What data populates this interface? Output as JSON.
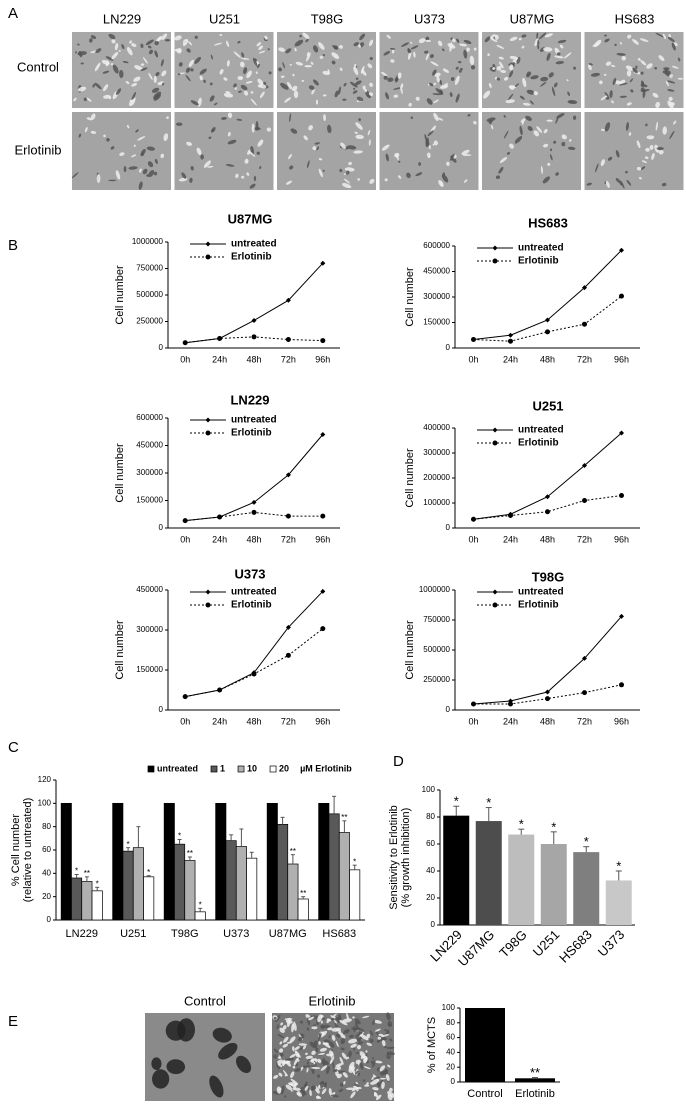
{
  "panel_labels": [
    "A",
    "B",
    "C",
    "D",
    "E"
  ],
  "micrographs": {
    "columns": [
      "LN229",
      "U251",
      "T98G",
      "U373",
      "U87MG",
      "HS683"
    ],
    "rows": [
      "Control",
      "Erlotinib"
    ]
  },
  "spheroids": {
    "labels": [
      "Control",
      "Erlotinib"
    ]
  },
  "chart_data": [
    {
      "type": "line",
      "title": "U87MG",
      "ylabel": "Cell number",
      "categories": [
        "0h",
        "24h",
        "48h",
        "72h",
        "96h"
      ],
      "ylim": [
        0,
        1000000
      ],
      "yticks": [
        0,
        250000,
        500000,
        750000,
        1000000
      ],
      "series": [
        {
          "name": "untreated",
          "color": "#000000",
          "marker": "diamond",
          "dotted": false,
          "values": [
            50000,
            90000,
            260000,
            450000,
            800000
          ]
        },
        {
          "name": "Erlotinib",
          "color": "#000000",
          "marker": "circle",
          "dotted": true,
          "values": [
            50000,
            90000,
            105000,
            80000,
            70000
          ]
        }
      ]
    },
    {
      "type": "line",
      "title": "HS683",
      "ylabel": "Cell number",
      "categories": [
        "0h",
        "24h",
        "48h",
        "72h",
        "96h"
      ],
      "ylim": [
        0,
        600000
      ],
      "yticks": [
        0,
        150000,
        300000,
        450000,
        600000
      ],
      "series": [
        {
          "name": "untreated",
          "color": "#000000",
          "marker": "diamond",
          "dotted": false,
          "values": [
            50000,
            75000,
            165000,
            355000,
            575000
          ]
        },
        {
          "name": "Erlotinib",
          "color": "#000000",
          "marker": "circle",
          "dotted": true,
          "values": [
            50000,
            40000,
            95000,
            140000,
            305000
          ]
        }
      ]
    },
    {
      "type": "line",
      "title": "LN229",
      "ylabel": "Cell number",
      "categories": [
        "0h",
        "24h",
        "48h",
        "72h",
        "96h"
      ],
      "ylim": [
        0,
        600000
      ],
      "yticks": [
        0,
        150000,
        300000,
        450000,
        600000
      ],
      "series": [
        {
          "name": "untreated",
          "color": "#000000",
          "marker": "diamond",
          "dotted": false,
          "values": [
            40000,
            60000,
            140000,
            290000,
            510000
          ]
        },
        {
          "name": "Erlotinib",
          "color": "#000000",
          "marker": "circle",
          "dotted": true,
          "values": [
            40000,
            60000,
            85000,
            65000,
            65000
          ]
        }
      ]
    },
    {
      "type": "line",
      "title": "U251",
      "ylabel": "Cell number",
      "categories": [
        "0h",
        "24h",
        "48h",
        "72h",
        "96h"
      ],
      "ylim": [
        0,
        400000
      ],
      "yticks": [
        0,
        100000,
        200000,
        300000,
        400000
      ],
      "series": [
        {
          "name": "untreated",
          "color": "#000000",
          "marker": "diamond",
          "dotted": false,
          "values": [
            35000,
            55000,
            125000,
            250000,
            380000
          ]
        },
        {
          "name": "Erlotinib",
          "color": "#000000",
          "marker": "circle",
          "dotted": true,
          "values": [
            35000,
            50000,
            65000,
            110000,
            130000
          ]
        }
      ]
    },
    {
      "type": "line",
      "title": "U373",
      "ylabel": "Cell number",
      "categories": [
        "0h",
        "24h",
        "48h",
        "72h",
        "96h"
      ],
      "ylim": [
        0,
        450000
      ],
      "yticks": [
        0,
        150000,
        300000,
        450000
      ],
      "series": [
        {
          "name": "untreated",
          "color": "#000000",
          "marker": "diamond",
          "dotted": false,
          "values": [
            50000,
            75000,
            140000,
            310000,
            445000
          ]
        },
        {
          "name": "Erlotinib",
          "color": "#000000",
          "marker": "circle",
          "dotted": true,
          "values": [
            50000,
            75000,
            135000,
            205000,
            305000
          ]
        }
      ]
    },
    {
      "type": "line",
      "title": "T98G",
      "ylabel": "Cell number",
      "categories": [
        "0h",
        "24h",
        "48h",
        "72h",
        "96h"
      ],
      "ylim": [
        0,
        1000000
      ],
      "yticks": [
        0,
        250000,
        500000,
        750000,
        1000000
      ],
      "series": [
        {
          "name": "untreated",
          "color": "#000000",
          "marker": "diamond",
          "dotted": false,
          "values": [
            50000,
            75000,
            150000,
            430000,
            780000
          ]
        },
        {
          "name": "Erlotinib",
          "color": "#000000",
          "marker": "circle",
          "dotted": true,
          "values": [
            50000,
            50000,
            95000,
            145000,
            210000
          ]
        }
      ]
    },
    {
      "type": "grouped_bar",
      "ylabel": [
        "% Cell number",
        "(relative to untreated)"
      ],
      "legend_suffix": "µM Erlotinib",
      "categories": [
        "LN229",
        "U251",
        "T98G",
        "U373",
        "U87MG",
        "HS683"
      ],
      "ylim": [
        0,
        120
      ],
      "yticks": [
        0,
        20,
        40,
        60,
        80,
        100,
        120
      ],
      "series": [
        {
          "name": "untreated",
          "color": "#000000",
          "values": [
            100,
            100,
            100,
            100,
            100,
            100
          ],
          "errors": [
            0,
            0,
            0,
            0,
            0,
            0
          ],
          "stars": [
            null,
            null,
            null,
            null,
            null,
            null
          ]
        },
        {
          "name": "1",
          "color": "#595959",
          "values": [
            36,
            59,
            65,
            68,
            82,
            91
          ],
          "errors": [
            3,
            3,
            4,
            5,
            6,
            15
          ],
          "stars": [
            "*",
            "*",
            "*",
            null,
            null,
            null
          ]
        },
        {
          "name": "10",
          "color": "#b0b0b0",
          "values": [
            33,
            62,
            51,
            63,
            48,
            75
          ],
          "errors": [
            4,
            18,
            3,
            15,
            8,
            10
          ],
          "stars": [
            "**",
            null,
            "**",
            null,
            "**",
            "**"
          ]
        },
        {
          "name": "20",
          "color": "#ffffff",
          "values": [
            25,
            37,
            7,
            53,
            18,
            43
          ],
          "errors": [
            3,
            1,
            3,
            5,
            2,
            4
          ],
          "stars": [
            "*",
            "*",
            "*",
            null,
            "**",
            "*"
          ]
        }
      ]
    },
    {
      "type": "bar",
      "ylabel": [
        "Sensitivity to Erlotinib",
        "(% growth inhibition)"
      ],
      "categories": [
        "LN229",
        "U87MG",
        "T98G",
        "U251",
        "HS683",
        "U373"
      ],
      "values": [
        81,
        77,
        67,
        60,
        54,
        33
      ],
      "errors": [
        7,
        10,
        4,
        9,
        4,
        7
      ],
      "stars": [
        "*",
        "*",
        "*",
        "*",
        "*",
        "*"
      ],
      "colors": [
        "#000000",
        "#4d4d4d",
        "#bdbdbd",
        "#a6a6a6",
        "#7f7f7f",
        "#c8c8c8"
      ],
      "ylim": [
        0,
        100
      ],
      "yticks": [
        0,
        20,
        40,
        60,
        80,
        100
      ]
    },
    {
      "type": "bar",
      "ylabel": [
        "% of MCTS"
      ],
      "categories": [
        "Control",
        "Erlotinib"
      ],
      "values": [
        100,
        5
      ],
      "errors": [
        0,
        1
      ],
      "stars": [
        null,
        "**"
      ],
      "colors": [
        "#000000",
        "#000000"
      ],
      "ylim": [
        0,
        100
      ],
      "yticks": [
        0,
        20,
        40,
        60,
        80,
        100
      ]
    }
  ]
}
